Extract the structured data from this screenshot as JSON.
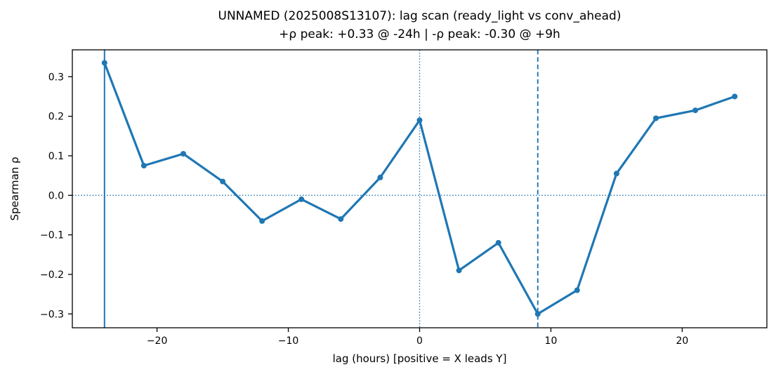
{
  "chart_data": {
    "type": "line",
    "title": "UNNAMED (2025008S13107): lag scan (ready_light vs conv_ahead)",
    "subtitle": "+ρ peak: +0.33 @ -24h | -ρ peak: -0.30 @ +9h",
    "xlabel": "lag (hours) [positive = X leads Y]",
    "ylabel": "Spearman ρ",
    "series": [
      {
        "name": "spearman-rho-vs-lag",
        "x": [
          -24,
          -21,
          -18,
          -15,
          -12,
          -9,
          -6,
          -3,
          0,
          3,
          6,
          9,
          12,
          15,
          18,
          21,
          24
        ],
        "y": [
          0.335,
          0.075,
          0.105,
          0.035,
          -0.065,
          -0.01,
          -0.06,
          0.045,
          0.19,
          -0.19,
          -0.12,
          -0.3,
          -0.24,
          0.055,
          0.195,
          0.215,
          0.25
        ]
      }
    ],
    "xlim": [
      -26.45,
      26.45
    ],
    "ylim": [
      -0.335,
      0.368
    ],
    "xticks": [
      {
        "value": -20,
        "label": "−20"
      },
      {
        "value": -10,
        "label": "−10"
      },
      {
        "value": 0,
        "label": "0"
      },
      {
        "value": 10,
        "label": "10"
      },
      {
        "value": 20,
        "label": "20"
      }
    ],
    "yticks": [
      {
        "value": 0.3,
        "label": "0.3"
      },
      {
        "value": 0.2,
        "label": "0.2"
      },
      {
        "value": 0.1,
        "label": "0.1"
      },
      {
        "value": 0.0,
        "label": "0.0"
      },
      {
        "value": -0.1,
        "label": "−0.1"
      },
      {
        "value": -0.2,
        "label": "−0.2"
      },
      {
        "value": -0.3,
        "label": "−0.3"
      }
    ],
    "reference_lines": [
      {
        "name": "zero-hline",
        "axis": "h",
        "value": 0,
        "style": "dotted"
      },
      {
        "name": "zero-vline",
        "axis": "v",
        "value": 0,
        "style": "dotted"
      },
      {
        "name": "pos-peak-vline",
        "axis": "v",
        "value": -24,
        "style": "solid"
      },
      {
        "name": "neg-peak-vline",
        "axis": "v",
        "value": 9,
        "style": "dashed"
      }
    ],
    "grid": false,
    "legend": false,
    "line_color": "#1f77b4",
    "axis_color": "#000000",
    "background": "#ffffff"
  }
}
